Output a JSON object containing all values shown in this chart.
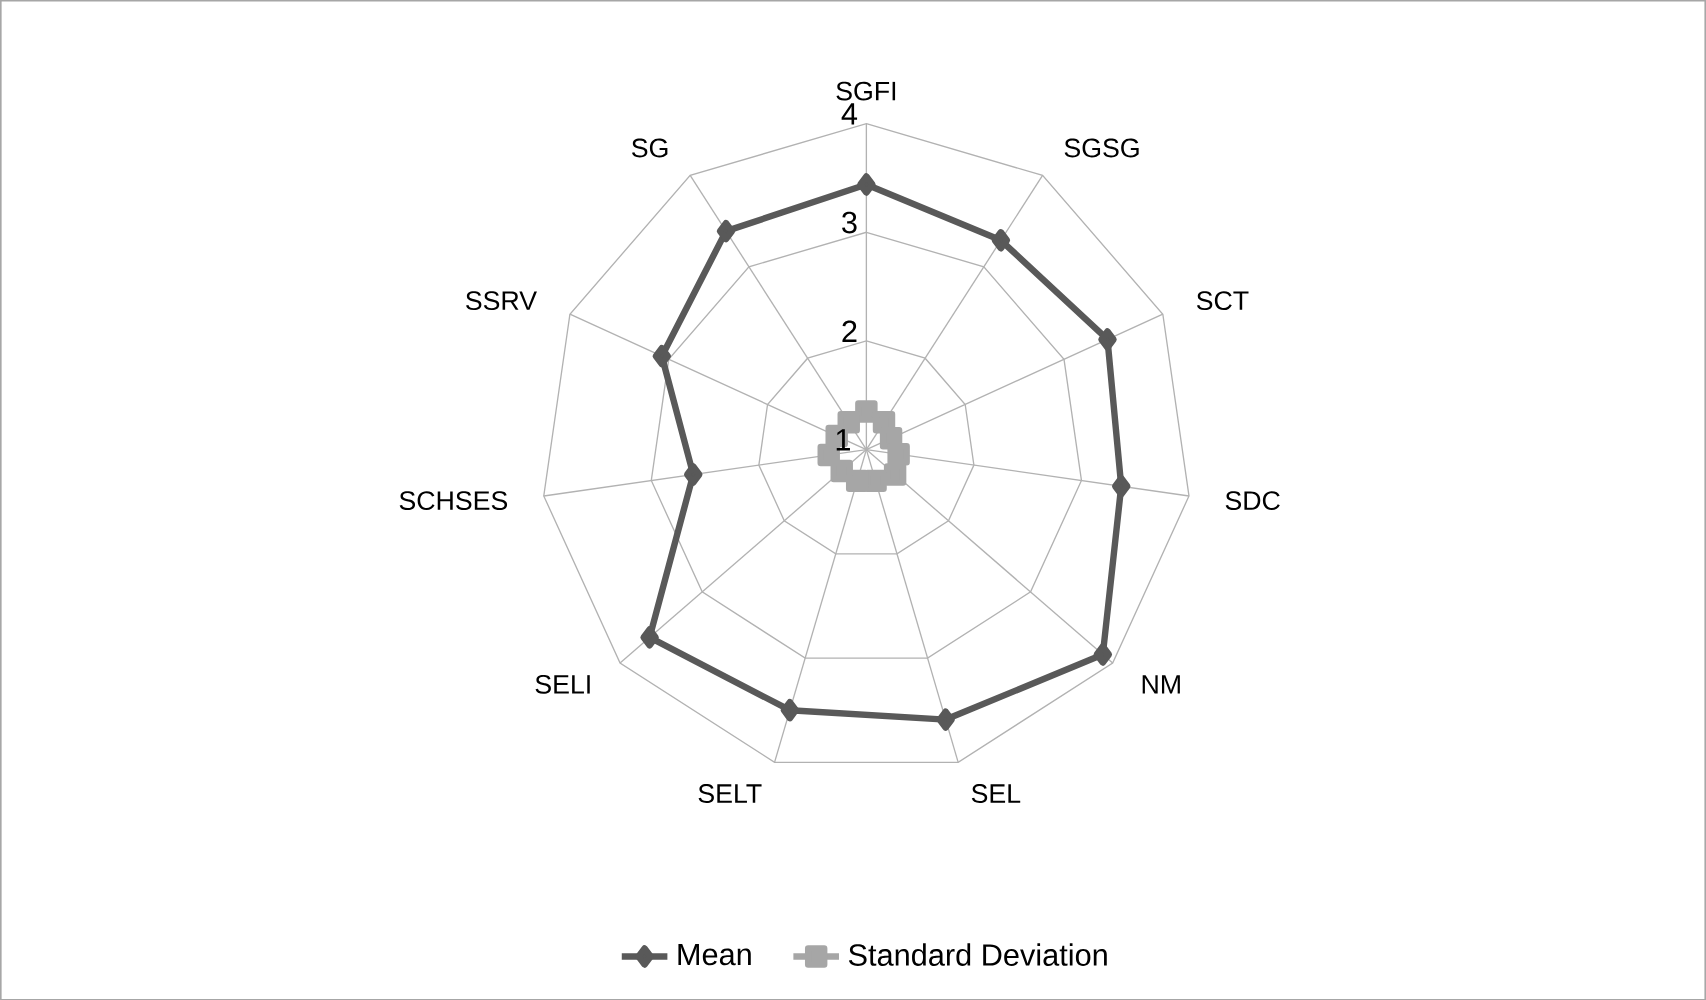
{
  "chart_data": {
    "type": "radar",
    "categories": [
      "SGFI",
      "SGSG",
      "SCT",
      "SDC",
      "NM",
      "SEL",
      "SELT",
      "SELI",
      "SCHSES",
      "SSRV",
      "SG"
    ],
    "ylim": [
      1,
      4
    ],
    "yticks": [
      1,
      2,
      3,
      4
    ],
    "grid": true,
    "legend": "bottom",
    "series": [
      {
        "name": "Mean",
        "color": "#595959",
        "marker": "diamond",
        "values": [
          3.44,
          3.29,
          3.44,
          3.37,
          3.88,
          3.59,
          3.5,
          3.64,
          2.61,
          3.07,
          3.39
        ]
      },
      {
        "name": "Standard Deviation",
        "color": "#a6a6a6",
        "marker": "square",
        "values": [
          1.35,
          1.3,
          1.25,
          1.3,
          1.35,
          1.3,
          1.3,
          1.3,
          1.35,
          1.3,
          1.3
        ]
      }
    ]
  }
}
